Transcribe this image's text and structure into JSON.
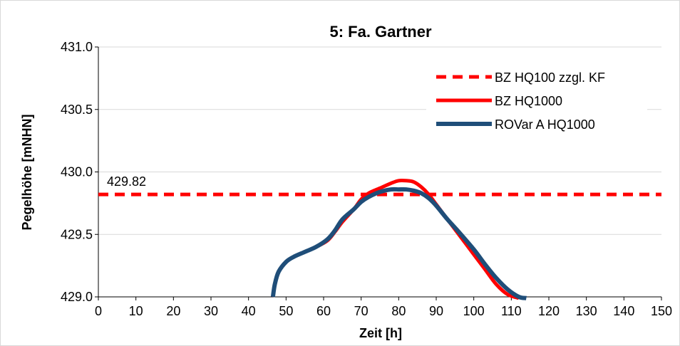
{
  "chart_data": {
    "type": "line",
    "title": "5: Fa. Gartner",
    "xlabel": "Zeit [h]",
    "ylabel": "Pegelhöhe [mNHN]",
    "xlim": [
      0,
      150
    ],
    "ylim": [
      429.0,
      431.0
    ],
    "x_ticks": [
      0,
      10,
      20,
      30,
      40,
      50,
      60,
      70,
      80,
      90,
      100,
      110,
      120,
      130,
      140,
      150
    ],
    "y_ticks": [
      "429.0",
      "429.5",
      "430.0",
      "430.5",
      "431.0"
    ],
    "y_tick_values": [
      429.0,
      429.5,
      430.0,
      430.5,
      431.0
    ],
    "grid": "horizontal",
    "legend": "top-right",
    "annotations": [
      {
        "text": "429.82"
      }
    ],
    "series": [
      {
        "name": "BZ HQ100 zzgl. KF",
        "color": "#ff0000",
        "style": "dashed",
        "x": [
          0,
          150
        ],
        "y": [
          429.82,
          429.82
        ]
      },
      {
        "name": "BZ HQ1000",
        "color": "#ff0000",
        "style": "solid",
        "x": [
          46.5,
          47,
          48,
          50,
          52,
          55,
          58,
          61,
          63,
          65,
          68,
          70,
          72,
          75,
          78,
          80,
          82,
          84,
          86,
          88,
          90,
          93,
          96,
          100,
          103,
          106,
          109,
          112
        ],
        "y": [
          429.0,
          429.1,
          429.2,
          429.28,
          429.32,
          429.36,
          429.4,
          429.45,
          429.52,
          429.6,
          429.7,
          429.78,
          429.83,
          429.87,
          429.91,
          429.93,
          429.93,
          429.92,
          429.88,
          429.82,
          429.74,
          429.62,
          429.5,
          429.34,
          429.22,
          429.1,
          429.02,
          428.99
        ]
      },
      {
        "name": "ROVar A HQ1000",
        "color": "#1f4e79",
        "style": "solid",
        "x": [
          46.5,
          47,
          48,
          50,
          52,
          55,
          58,
          61,
          63,
          65,
          68,
          70,
          72,
          75,
          78,
          80,
          82,
          84,
          86,
          88,
          90,
          93,
          96,
          100,
          103,
          106,
          109,
          112,
          114
        ],
        "y": [
          429.0,
          429.1,
          429.2,
          429.28,
          429.32,
          429.36,
          429.4,
          429.46,
          429.53,
          429.62,
          429.7,
          429.76,
          429.8,
          429.84,
          429.86,
          429.86,
          429.86,
          429.85,
          429.83,
          429.79,
          429.73,
          429.62,
          429.52,
          429.38,
          429.26,
          429.15,
          429.06,
          429.0,
          428.99
        ]
      }
    ]
  }
}
